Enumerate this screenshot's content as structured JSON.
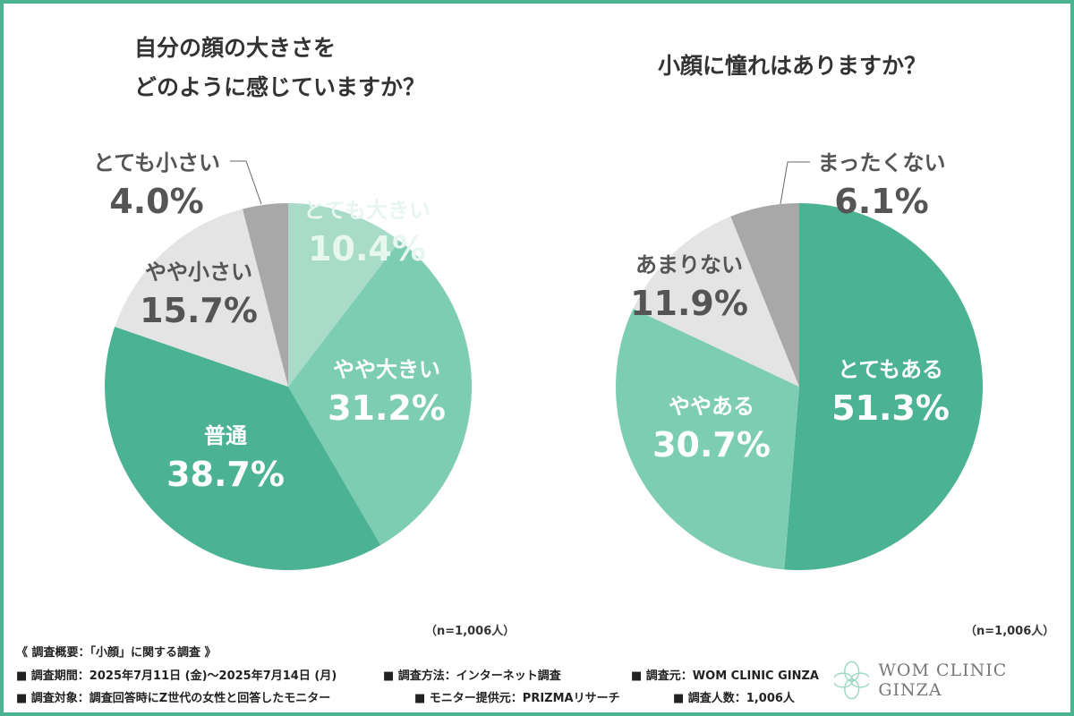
{
  "colors": {
    "border": "#4db392",
    "dark": "#4bb394",
    "mid": "#7dcdb3",
    "light": "#a8dcc9",
    "pale": "#e4e4e4",
    "gray": "#a8a8a8"
  },
  "chart_data": [
    {
      "type": "pie",
      "title": "自分の顔の大きさを\nどのように感じていますか？",
      "title_lines": [
        "自分の顔の大きさを",
        "どのように感じていますか？"
      ],
      "n_label": "（n=1,006人）",
      "slices": [
        {
          "label": "とても大きい",
          "value": 10.4,
          "value_label": "10.4%"
        },
        {
          "label": "やや大きい",
          "value": 31.2,
          "value_label": "31.2%"
        },
        {
          "label": "普通",
          "value": 38.7,
          "value_label": "38.7%"
        },
        {
          "label": "やや小さい",
          "value": 15.7,
          "value_label": "15.7%"
        },
        {
          "label": "とても小さい",
          "value": 4.0,
          "value_label": "4.0%"
        }
      ]
    },
    {
      "type": "pie",
      "title": "小顔に憧れはありますか？",
      "title_lines": [
        "小顔に憧れはありますか？"
      ],
      "n_label": "（n=1,006人）",
      "slices": [
        {
          "label": "とてもある",
          "value": 51.3,
          "value_label": "51.3%"
        },
        {
          "label": "ややある",
          "value": 30.7,
          "value_label": "30.7%"
        },
        {
          "label": "あまりない",
          "value": 11.9,
          "value_label": "11.9%"
        },
        {
          "label": "まったくない",
          "value": 6.1,
          "value_label": "6.1%"
        }
      ]
    }
  ],
  "footer": {
    "heading": "《 調査概要：「小顔」に関する調査 》",
    "period": "■ 調査期間：2025年7月11日 (金)〜2025年7月14日 (月)",
    "method": "■ 調査方法：インターネット調査",
    "source": "■ 調査元：WOM CLINIC GINZA",
    "target": "■ 調査対象：調査回答時にZ世代の女性と回答したモニター",
    "provider": "■ モニター提供元：PRIZMAリサーチ",
    "count": "■ 調査人数：1,006人"
  },
  "logo": {
    "text": "WOM CLINIC GINZA"
  }
}
